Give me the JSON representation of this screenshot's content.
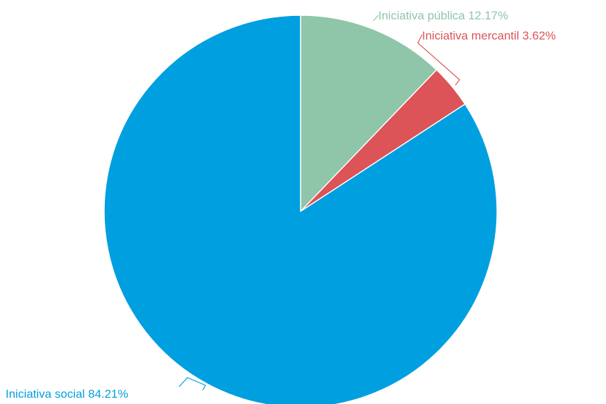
{
  "chart_data": {
    "type": "pie",
    "title": "",
    "start_angle_deg": 0,
    "direction": "clockwise",
    "slices": [
      {
        "label": "Iniciativa pública",
        "value": 12.17,
        "display": "Iniciativa pública 12.17%",
        "color": "#8fc5a8"
      },
      {
        "label": "Iniciativa mercantil",
        "value": 3.62,
        "display": "Iniciativa mercantil 3.62%",
        "color": "#dc5458"
      },
      {
        "label": "Iniciativa social",
        "value": 84.21,
        "display": "Iniciativa social 84.21%",
        "color": "#009fe0"
      }
    ]
  }
}
